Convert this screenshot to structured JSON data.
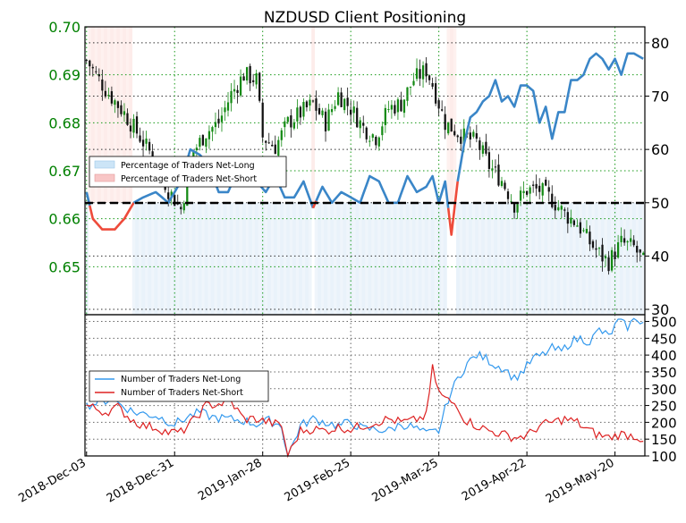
{
  "chart_data": [
    {
      "type": "candlestick+line",
      "title": "NZDUSD Client Positioning",
      "x_tick_labels": [
        "2018-Dec-03",
        "2018-Dec-31",
        "2019-Jan-28",
        "2019-Feb-25",
        "2019-Mar-25",
        "2019-Apr-22",
        "2019-May-20"
      ],
      "left_axis": {
        "ylim": [
          0.64,
          0.7
        ],
        "ticks": [
          "0.65",
          "0.66",
          "0.67",
          "0.68",
          "0.69",
          "0.70"
        ],
        "color": "#008000"
      },
      "right_axis": {
        "ylim": [
          29,
          83
        ],
        "ticks": [
          "30",
          "40",
          "50",
          "60",
          "70",
          "80"
        ]
      },
      "reference_line": 50,
      "legend": {
        "placement": "left",
        "entries": [
          "Percentage of Traders Net-Long",
          "Percentage of Traders Net-Short"
        ]
      },
      "price_keypoints": [
        [
          0,
          0.693
        ],
        [
          6,
          0.687
        ],
        [
          12,
          0.682
        ],
        [
          18,
          0.676
        ],
        [
          22,
          0.672
        ],
        [
          26,
          0.666
        ],
        [
          30,
          0.662
        ],
        [
          34,
          0.674
        ],
        [
          38,
          0.678
        ],
        [
          42,
          0.68
        ],
        [
          46,
          0.686
        ],
        [
          50,
          0.69
        ],
        [
          54,
          0.689
        ],
        [
          56,
          0.677
        ],
        [
          60,
          0.675
        ],
        [
          64,
          0.68
        ],
        [
          68,
          0.682
        ],
        [
          72,
          0.684
        ],
        [
          76,
          0.68
        ],
        [
          80,
          0.686
        ],
        [
          84,
          0.683
        ],
        [
          88,
          0.679
        ],
        [
          92,
          0.677
        ],
        [
          96,
          0.683
        ],
        [
          100,
          0.684
        ],
        [
          104,
          0.689
        ],
        [
          108,
          0.691
        ],
        [
          110,
          0.688
        ],
        [
          112,
          0.684
        ],
        [
          114,
          0.68
        ],
        [
          116,
          0.679
        ],
        [
          120,
          0.677
        ],
        [
          124,
          0.676
        ],
        [
          128,
          0.671
        ],
        [
          132,
          0.668
        ],
        [
          136,
          0.663
        ],
        [
          140,
          0.666
        ],
        [
          144,
          0.666
        ],
        [
          148,
          0.664
        ],
        [
          152,
          0.661
        ],
        [
          156,
          0.659
        ],
        [
          160,
          0.655
        ],
        [
          164,
          0.652
        ],
        [
          166,
          0.651
        ],
        [
          170,
          0.655
        ],
        [
          174,
          0.654
        ],
        [
          177,
          0.651
        ]
      ],
      "long_pct_keypoints": [
        [
          0,
          52
        ],
        [
          2,
          47
        ],
        [
          5,
          45
        ],
        [
          9,
          45
        ],
        [
          12,
          47
        ],
        [
          15,
          50
        ],
        [
          18,
          51
        ],
        [
          22,
          52
        ],
        [
          26,
          50
        ],
        [
          30,
          54
        ],
        [
          33,
          60
        ],
        [
          36,
          59
        ],
        [
          39,
          57
        ],
        [
          42,
          52
        ],
        [
          45,
          52
        ],
        [
          48,
          56
        ],
        [
          51,
          58
        ],
        [
          54,
          54
        ],
        [
          57,
          52
        ],
        [
          60,
          55
        ],
        [
          63,
          51
        ],
        [
          66,
          51
        ],
        [
          69,
          54
        ],
        [
          72,
          49
        ],
        [
          75,
          53
        ],
        [
          78,
          50
        ],
        [
          81,
          52
        ],
        [
          84,
          51
        ],
        [
          87,
          50
        ],
        [
          90,
          55
        ],
        [
          93,
          54
        ],
        [
          96,
          50
        ],
        [
          99,
          50
        ],
        [
          102,
          55
        ],
        [
          105,
          52
        ],
        [
          108,
          53
        ],
        [
          110,
          55
        ],
        [
          112,
          50
        ],
        [
          114,
          54
        ],
        [
          116,
          44
        ],
        [
          118,
          54
        ],
        [
          120,
          61
        ],
        [
          122,
          66
        ],
        [
          124,
          67
        ],
        [
          126,
          69
        ],
        [
          128,
          70
        ],
        [
          130,
          73
        ],
        [
          132,
          69
        ],
        [
          134,
          70
        ],
        [
          136,
          68
        ],
        [
          138,
          72
        ],
        [
          140,
          72
        ],
        [
          142,
          71
        ],
        [
          144,
          65
        ],
        [
          146,
          68
        ],
        [
          148,
          62
        ],
        [
          150,
          67
        ],
        [
          152,
          67
        ],
        [
          154,
          73
        ],
        [
          156,
          73
        ],
        [
          158,
          74
        ],
        [
          160,
          77
        ],
        [
          162,
          78
        ],
        [
          164,
          77
        ],
        [
          166,
          75
        ],
        [
          168,
          77
        ],
        [
          170,
          74
        ],
        [
          172,
          78
        ],
        [
          174,
          78
        ],
        [
          177,
          77
        ]
      ],
      "series": [
        {
          "name": "Number of Traders Net-Long",
          "color": "#3399ee",
          "ylim": [
            100,
            520
          ],
          "ticks": [
            "100",
            "150",
            "200",
            "250",
            "300",
            "350",
            "400",
            "450",
            "500"
          ],
          "keypoints": [
            [
              0,
              250
            ],
            [
              8,
              270
            ],
            [
              15,
              230
            ],
            [
              22,
              220
            ],
            [
              28,
              195
            ],
            [
              32,
              215
            ],
            [
              36,
              230
            ],
            [
              40,
              215
            ],
            [
              45,
              210
            ],
            [
              50,
              205
            ],
            [
              54,
              195
            ],
            [
              58,
              205
            ],
            [
              62,
              190
            ],
            [
              64,
              100
            ],
            [
              68,
              190
            ],
            [
              72,
              210
            ],
            [
              76,
              200
            ],
            [
              80,
              190
            ],
            [
              84,
              200
            ],
            [
              88,
              180
            ],
            [
              92,
              180
            ],
            [
              96,
              175
            ],
            [
              100,
              195
            ],
            [
              104,
              185
            ],
            [
              108,
              165
            ],
            [
              112,
              175
            ],
            [
              115,
              270
            ],
            [
              118,
              330
            ],
            [
              121,
              375
            ],
            [
              124,
              400
            ],
            [
              127,
              390
            ],
            [
              130,
              370
            ],
            [
              133,
              360
            ],
            [
              136,
              330
            ],
            [
              139,
              355
            ],
            [
              142,
              390
            ],
            [
              145,
              400
            ],
            [
              148,
              420
            ],
            [
              151,
              410
            ],
            [
              154,
              440
            ],
            [
              157,
              450
            ],
            [
              160,
              440
            ],
            [
              163,
              475
            ],
            [
              166,
              455
            ],
            [
              169,
              500
            ],
            [
              172,
              485
            ],
            [
              175,
              510
            ],
            [
              177,
              495
            ]
          ]
        },
        {
          "name": "Number of Traders Net-Short",
          "color": "#dd2222",
          "ylim": [
            100,
            520
          ],
          "keypoints": [
            [
              0,
              250
            ],
            [
              6,
              230
            ],
            [
              10,
              245
            ],
            [
              14,
              210
            ],
            [
              18,
              190
            ],
            [
              22,
              185
            ],
            [
              26,
              170
            ],
            [
              30,
              170
            ],
            [
              34,
              205
            ],
            [
              38,
              250
            ],
            [
              42,
              255
            ],
            [
              46,
              260
            ],
            [
              50,
              210
            ],
            [
              54,
              210
            ],
            [
              58,
              200
            ],
            [
              62,
              190
            ],
            [
              64,
              100
            ],
            [
              68,
              175
            ],
            [
              72,
              180
            ],
            [
              76,
              175
            ],
            [
              80,
              185
            ],
            [
              84,
              180
            ],
            [
              88,
              190
            ],
            [
              92,
              200
            ],
            [
              96,
              210
            ],
            [
              100,
              200
            ],
            [
              104,
              205
            ],
            [
              108,
              220
            ],
            [
              110,
              360
            ],
            [
              112,
              290
            ],
            [
              114,
              270
            ],
            [
              116,
              260
            ],
            [
              118,
              250
            ],
            [
              120,
              210
            ],
            [
              124,
              190
            ],
            [
              128,
              175
            ],
            [
              132,
              165
            ],
            [
              136,
              155
            ],
            [
              140,
              160
            ],
            [
              144,
              190
            ],
            [
              148,
              200
            ],
            [
              152,
              210
            ],
            [
              156,
              200
            ],
            [
              158,
              185
            ],
            [
              162,
              165
            ],
            [
              166,
              155
            ],
            [
              170,
              165
            ],
            [
              174,
              160
            ],
            [
              177,
              150
            ]
          ]
        }
      ]
    }
  ]
}
